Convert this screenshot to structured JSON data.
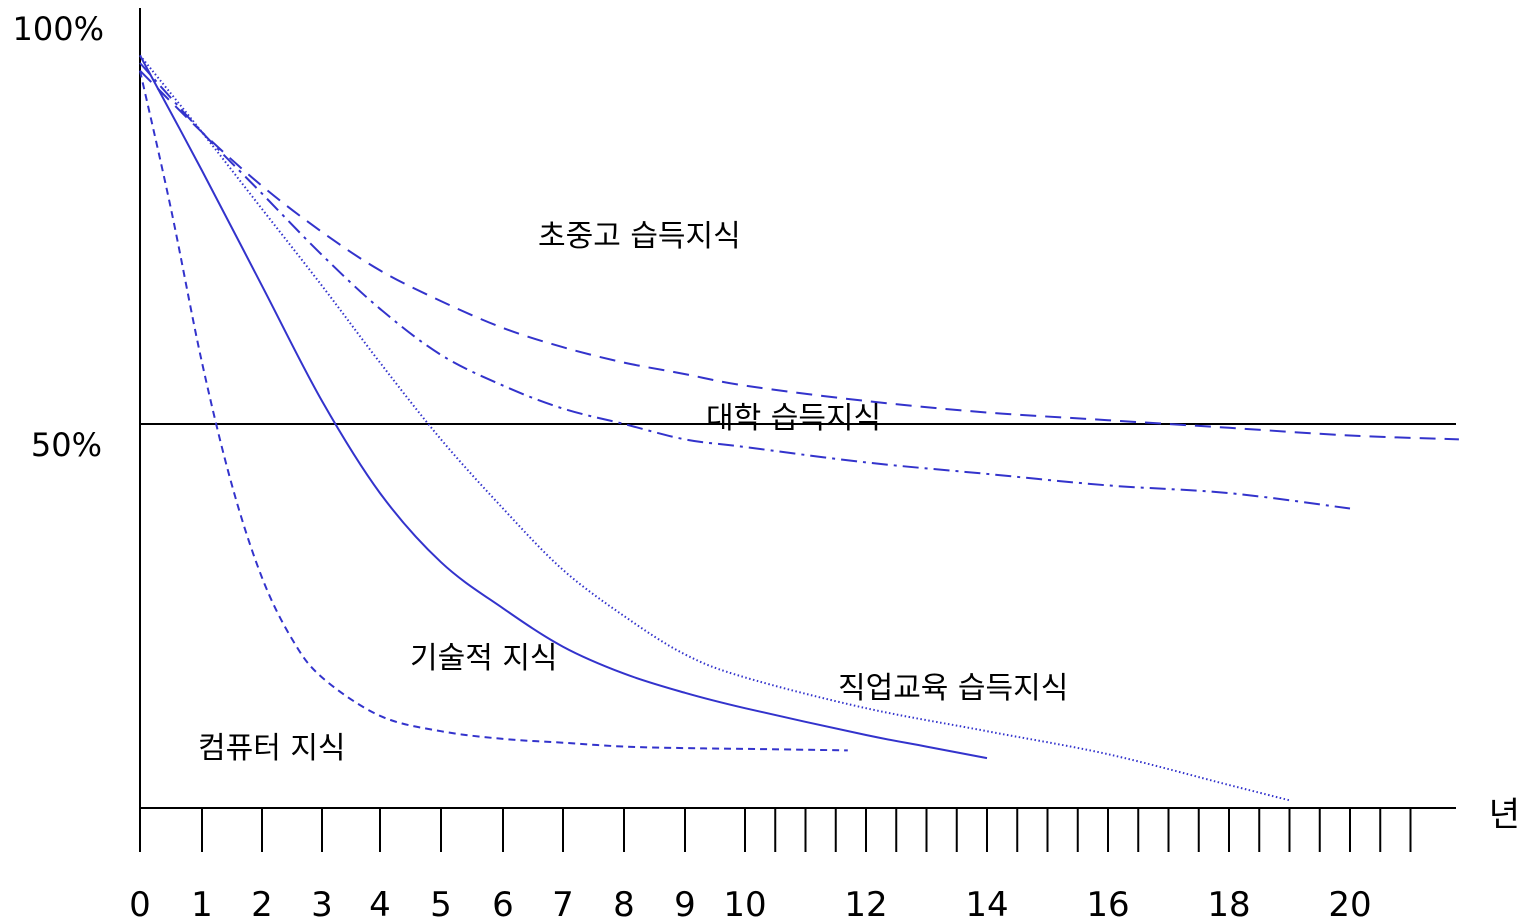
{
  "chart_data": {
    "type": "line",
    "title": "",
    "xlabel": "년",
    "ylabel": "",
    "y_axis_labels": [
      "100%",
      "50%"
    ],
    "x_tick_labels": [
      "0",
      "1",
      "2",
      "3",
      "4",
      "5",
      "6",
      "7",
      "8",
      "9",
      "10",
      "12",
      "14",
      "16",
      "18",
      "20"
    ],
    "xlim": [
      0,
      22
    ],
    "ylim": [
      0,
      100
    ],
    "reference_lines": [
      {
        "y": 50,
        "label": "50%"
      },
      {
        "y": 0,
        "label": ""
      }
    ],
    "grid": false,
    "legend": "none (series labelled inline)",
    "colors": {
      "series": "#3333cc",
      "axis": "#000000"
    },
    "series": [
      {
        "name": "초중고 습득지식",
        "style": "dashed-long",
        "x": [
          0,
          1,
          2,
          3,
          4,
          5,
          6,
          7,
          8,
          9,
          10,
          12,
          14,
          16,
          18,
          20,
          21.8
        ],
        "y": [
          96,
          88,
          81,
          75,
          70,
          66,
          62.5,
          60,
          58,
          56.5,
          55,
          53,
          51.5,
          50.5,
          49.5,
          48.5,
          48
        ]
      },
      {
        "name": "대학 습득지식",
        "style": "dash-dot",
        "x": [
          0,
          1,
          2,
          3,
          4,
          5,
          6,
          7,
          8,
          9,
          10,
          12,
          14,
          16,
          18,
          20
        ],
        "y": [
          97,
          88,
          80,
          72,
          65,
          59,
          55,
          52,
          50,
          48,
          47,
          45,
          43.5,
          42,
          41,
          39
        ]
      },
      {
        "name": "직업교육 습득지식",
        "style": "dotted",
        "x": [
          0,
          1,
          2,
          3,
          4,
          5,
          6,
          7,
          8,
          9,
          10,
          12,
          14,
          16,
          18,
          19
        ],
        "y": [
          98,
          88,
          78,
          68,
          58,
          48,
          39,
          31,
          25,
          20,
          17,
          13,
          10,
          7,
          3,
          1
        ]
      },
      {
        "name": "기술적 지식",
        "style": "solid",
        "x": [
          0,
          1,
          2,
          3,
          4,
          5,
          6,
          7,
          8,
          9,
          10,
          12,
          13,
          14
        ],
        "y": [
          98,
          83,
          68,
          53,
          41,
          32,
          26,
          21,
          17.5,
          15,
          13,
          9.5,
          8,
          6.5
        ]
      },
      {
        "name": "컴퓨터 지식",
        "style": "dashed-short",
        "x": [
          0,
          0.5,
          1,
          1.5,
          2,
          2.5,
          3,
          4,
          5,
          6,
          7,
          8,
          9,
          10,
          11.7
        ],
        "y": [
          96,
          78,
          58,
          42,
          30,
          22,
          17,
          12,
          10,
          9,
          8.5,
          8,
          7.8,
          7.7,
          7.5
        ]
      }
    ]
  }
}
